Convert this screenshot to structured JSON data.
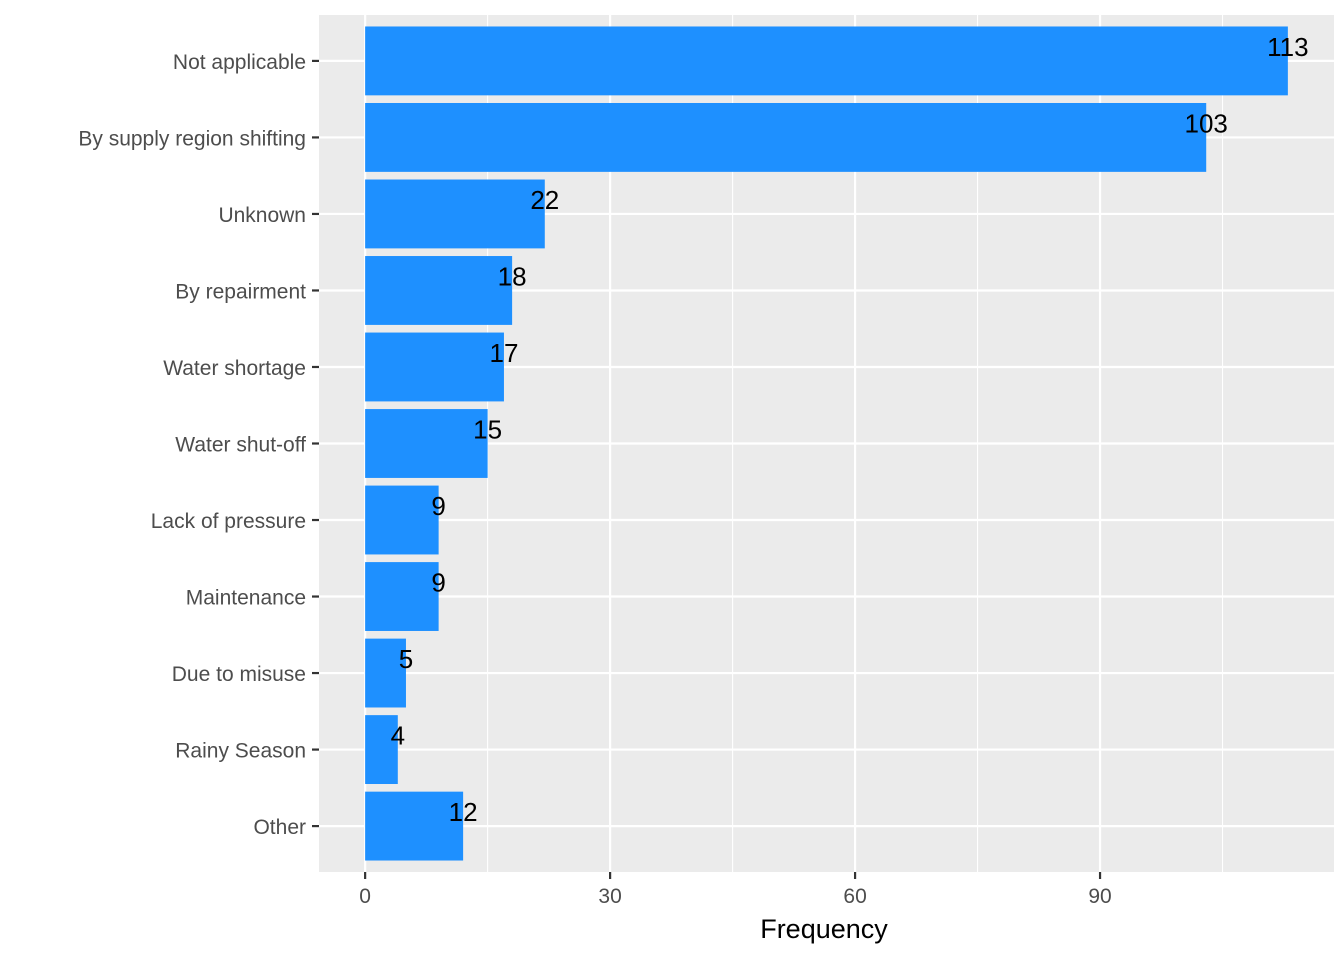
{
  "chart_data": {
    "type": "bar",
    "orientation": "horizontal",
    "title": "",
    "xlabel": "Frequency",
    "ylabel": "",
    "categories": [
      "Not applicable",
      "By supply region shifting",
      "Unknown",
      "By repairment",
      "Water shortage",
      "Water shut-off",
      "Lack of pressure",
      "Maintenance",
      "Due to misuse",
      "Rainy Season",
      "Other"
    ],
    "values": [
      113,
      103,
      22,
      18,
      17,
      15,
      9,
      9,
      5,
      4,
      12
    ],
    "xlim": [
      -5.65,
      118.65
    ],
    "x_ticks": [
      0,
      30,
      60,
      90
    ],
    "x_minor_ticks": [
      15,
      45,
      75,
      105
    ],
    "grid": true,
    "legend": "none",
    "colors": {
      "bar": "#1E90FF",
      "panel": "#EBEBEB",
      "grid": "#FFFFFF"
    }
  }
}
